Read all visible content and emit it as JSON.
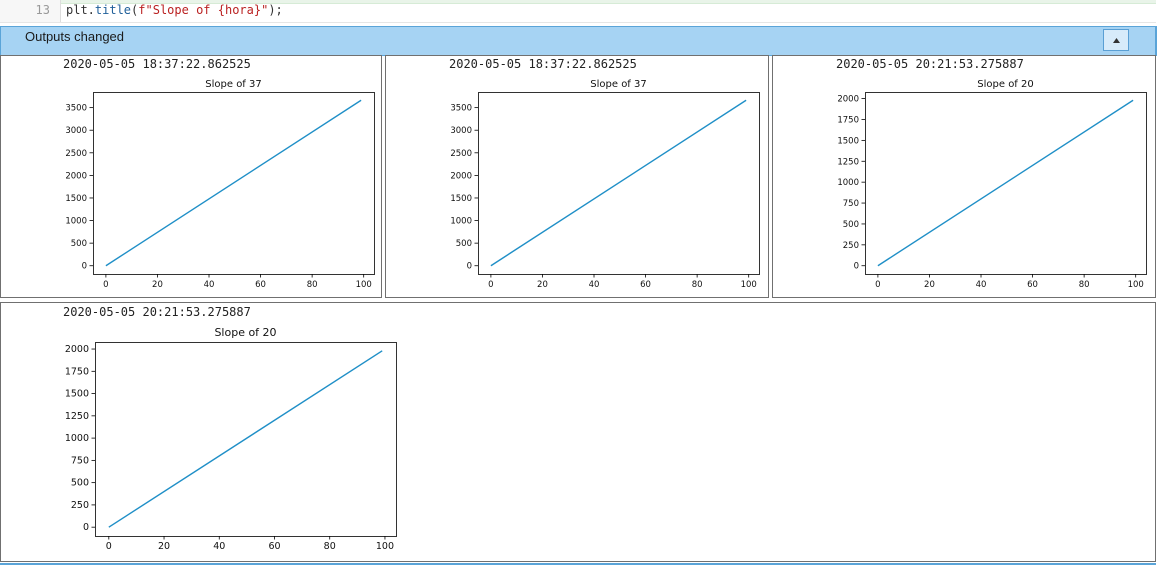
{
  "code": {
    "line_number": "13",
    "prefix": "plt.",
    "func": "title",
    "open": "(",
    "fprefix": "f",
    "string": "\"Slope of {hora}\"",
    "close": ");"
  },
  "banner": {
    "label": "Outputs changed"
  },
  "outputs": [
    {
      "timestamp": "2020-05-05 18:37:22.862525",
      "chart_data": {
        "type": "line",
        "title": "Slope of 37",
        "xlabel": "",
        "ylabel": "",
        "x": [
          0,
          99
        ],
        "series": [
          {
            "values": [
              0,
              3663
            ]
          }
        ],
        "xlim": [
          -5,
          104
        ],
        "ylim": [
          -183,
          3846
        ],
        "xticks": [
          0,
          20,
          40,
          60,
          80,
          100
        ],
        "yticks": [
          0,
          500,
          1000,
          1500,
          2000,
          2500,
          3000,
          3500
        ],
        "color": "#1f8fc7",
        "grid": false
      }
    },
    {
      "timestamp": "2020-05-05 18:37:22.862525",
      "chart_data": {
        "type": "line",
        "title": "Slope of 37",
        "xlabel": "",
        "ylabel": "",
        "x": [
          0,
          99
        ],
        "series": [
          {
            "values": [
              0,
              3663
            ]
          }
        ],
        "xlim": [
          -5,
          104
        ],
        "ylim": [
          -183,
          3846
        ],
        "xticks": [
          0,
          20,
          40,
          60,
          80,
          100
        ],
        "yticks": [
          0,
          500,
          1000,
          1500,
          2000,
          2500,
          3000,
          3500
        ],
        "color": "#1f8fc7",
        "grid": false
      }
    },
    {
      "timestamp": "2020-05-05 20:21:53.275887",
      "chart_data": {
        "type": "line",
        "title": "Slope of 20",
        "xlabel": "",
        "ylabel": "",
        "x": [
          0,
          99
        ],
        "series": [
          {
            "values": [
              0,
              1980
            ]
          }
        ],
        "xlim": [
          -5,
          104
        ],
        "ylim": [
          -99,
          2079
        ],
        "xticks": [
          0,
          20,
          40,
          60,
          80,
          100
        ],
        "yticks": [
          0,
          250,
          500,
          750,
          1000,
          1250,
          1500,
          1750,
          2000
        ],
        "color": "#1f8fc7",
        "grid": false
      }
    },
    {
      "timestamp": "2020-05-05 20:21:53.275887",
      "chart_data": {
        "type": "line",
        "title": "Slope of 20",
        "xlabel": "",
        "ylabel": "",
        "x": [
          0,
          99
        ],
        "series": [
          {
            "values": [
              0,
              1980
            ]
          }
        ],
        "xlim": [
          -5,
          104
        ],
        "ylim": [
          -99,
          2079
        ],
        "xticks": [
          0,
          20,
          40,
          60,
          80,
          100
        ],
        "yticks": [
          0,
          250,
          500,
          750,
          1000,
          1250,
          1500,
          1750,
          2000
        ],
        "color": "#1f8fc7",
        "grid": false
      }
    }
  ]
}
